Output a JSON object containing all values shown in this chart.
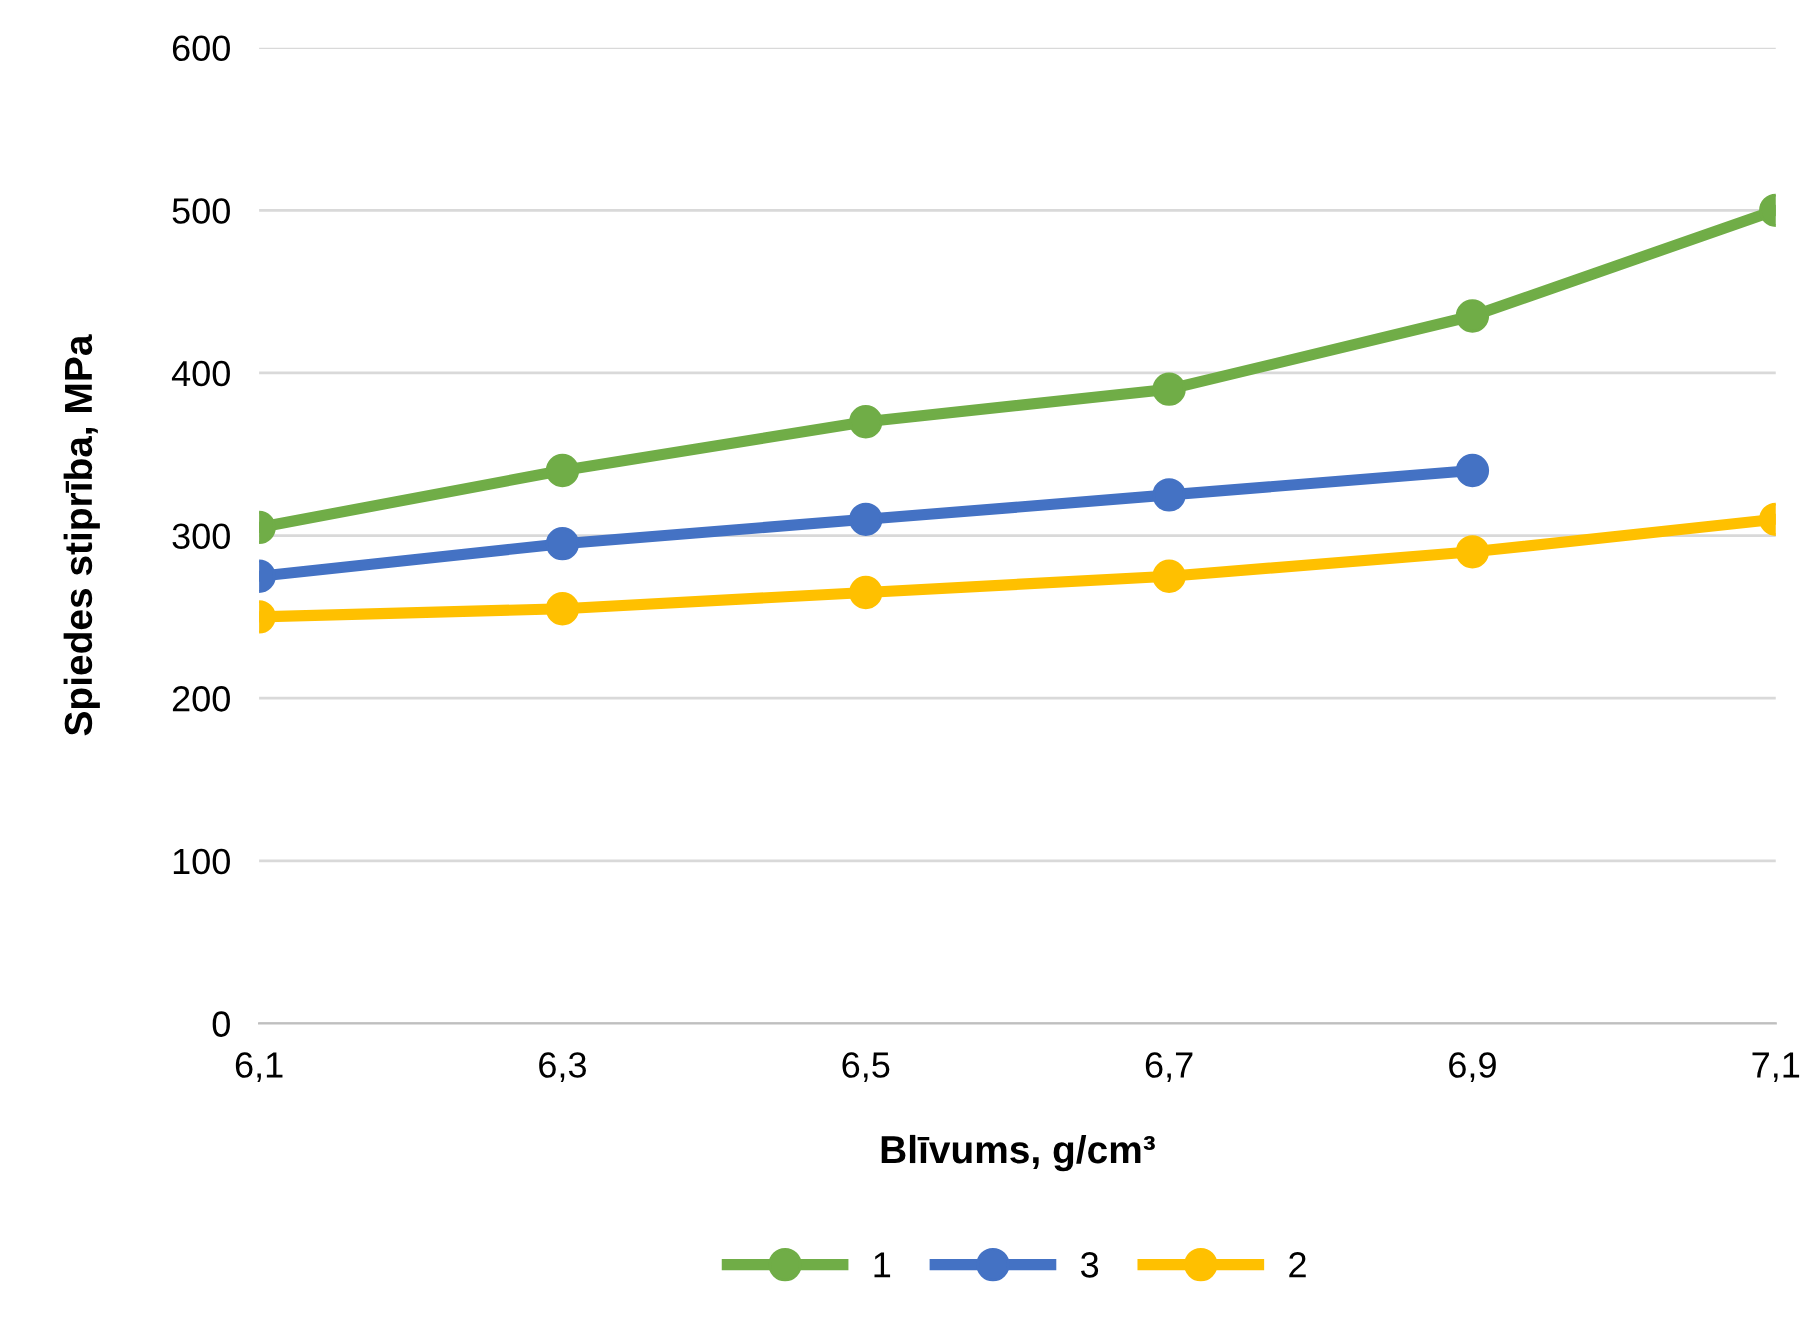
{
  "chart_data": {
    "type": "line",
    "xlabel": "Blīvums, g/cm³",
    "ylabel": "Spiedes stiprība, MPa",
    "categories": [
      "6,1",
      "6,3",
      "6,5",
      "6,7",
      "6,9",
      "7,1"
    ],
    "series": [
      {
        "name": "1",
        "color": "#70ad47",
        "values": [
          305,
          340,
          370,
          390,
          435,
          500
        ]
      },
      {
        "name": "3",
        "color": "#4472c4",
        "values": [
          275,
          295,
          310,
          325,
          340,
          null
        ]
      },
      {
        "name": "2",
        "color": "#ffc000",
        "values": [
          250,
          255,
          265,
          275,
          290,
          310
        ]
      }
    ],
    "ylim": [
      0,
      600
    ],
    "yticks": [
      0,
      100,
      200,
      300,
      400,
      500,
      600
    ],
    "grid": "y",
    "legend": "bottom",
    "marker": "circle",
    "line_style": "solid"
  }
}
